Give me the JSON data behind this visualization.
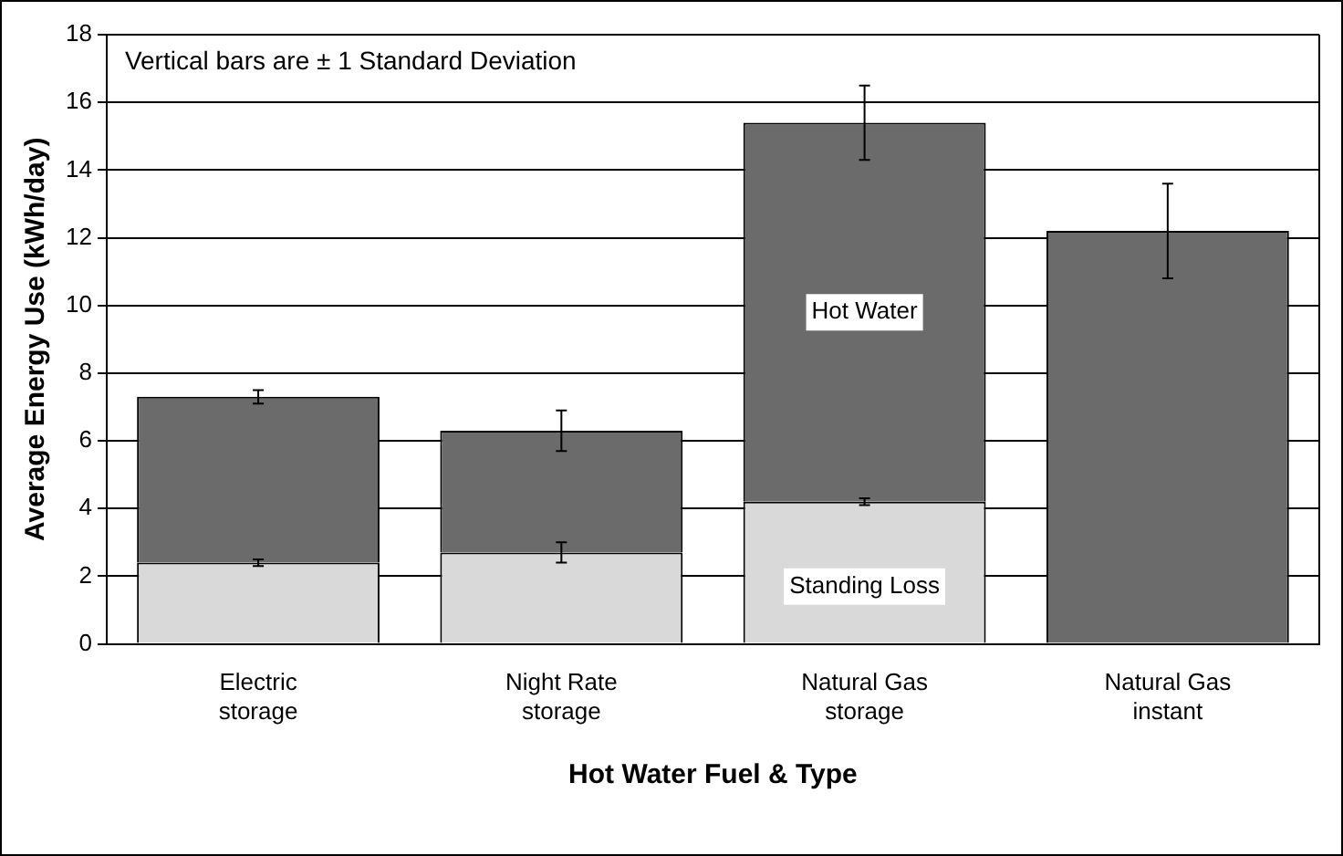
{
  "chart_data": {
    "type": "bar",
    "stacked": true,
    "xlabel": "Hot Water Fuel & Type",
    "ylabel": "Average Energy Use (kWh/day)",
    "categories": [
      [
        "Electric",
        "storage"
      ],
      [
        "Night Rate",
        "storage"
      ],
      [
        "Natural Gas",
        "storage"
      ],
      [
        "Natural Gas",
        "instant"
      ]
    ],
    "series": [
      {
        "name": "Standing Loss",
        "color": "#d9d9d9",
        "values": [
          2.4,
          2.7,
          4.2,
          null
        ],
        "errors": [
          0.1,
          0.3,
          0.1,
          null
        ]
      },
      {
        "name": "Hot Water",
        "color": "#6b6b6b",
        "values": [
          4.9,
          3.6,
          11.2,
          12.2
        ],
        "errors": [
          0.2,
          0.6,
          1.1,
          1.4
        ]
      }
    ],
    "ylim": [
      0,
      18
    ],
    "yticks": [
      0,
      2,
      4,
      6,
      8,
      10,
      12,
      14,
      16,
      18
    ],
    "grid": "y",
    "legend": false,
    "annotations": [
      "Vertical bars are ± 1 Standard Deviation"
    ]
  }
}
